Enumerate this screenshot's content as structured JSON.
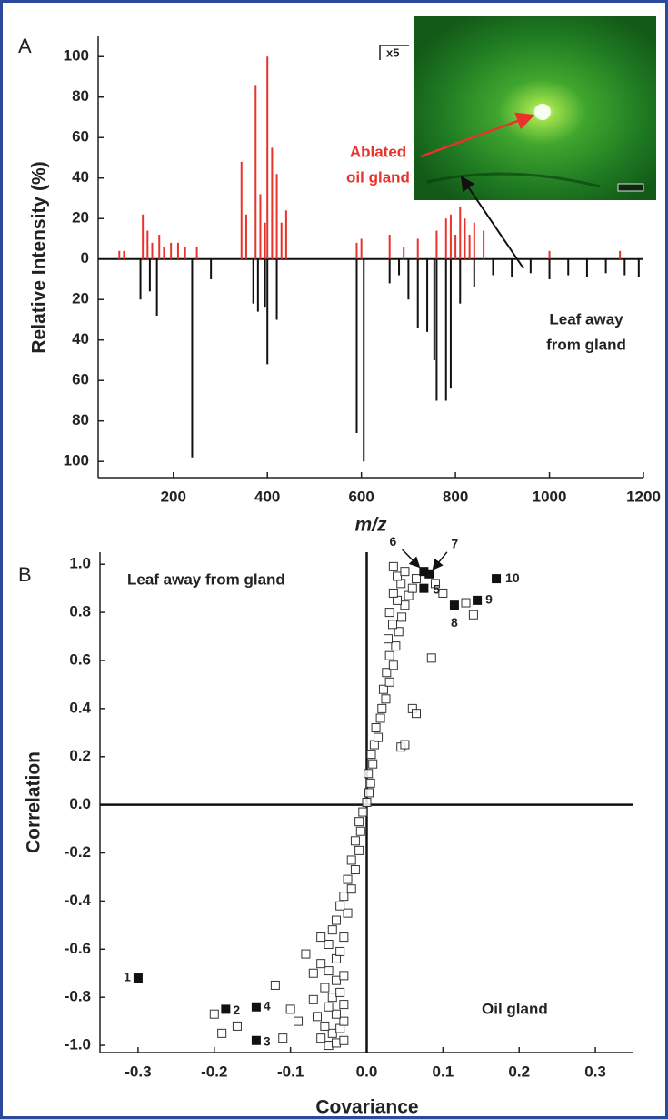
{
  "chart_data": [
    {
      "type": "bar",
      "panel": "A",
      "xlabel": "m/z",
      "ylabel": "Relative Intensity (%)",
      "xlim": [
        40,
        1200
      ],
      "xticks": [
        200,
        400,
        600,
        800,
        1000,
        1200
      ],
      "ylim": [
        -108,
        110
      ],
      "yticks": [
        100,
        80,
        60,
        40,
        20,
        0,
        {
          "value": -20,
          "label": "20"
        },
        {
          "value": -40,
          "label": "40"
        },
        {
          "value": -60,
          "label": "60"
        },
        {
          "value": -80,
          "label": "80"
        },
        {
          "value": -100,
          "label": "100"
        }
      ],
      "series": [
        {
          "color": "#e8322a",
          "x": [
            85,
            95,
            135,
            145,
            155,
            170,
            180,
            195,
            210,
            225,
            250,
            345,
            355,
            375,
            385,
            395,
            400,
            410,
            420,
            430,
            440,
            590,
            600,
            660,
            690,
            720,
            760,
            780,
            790,
            800,
            810,
            820,
            830,
            840,
            860,
            1000,
            1150
          ],
          "values": [
            4,
            4,
            22,
            14,
            8,
            12,
            6,
            8,
            8,
            6,
            6,
            48,
            22,
            86,
            32,
            18,
            100,
            55,
            42,
            18,
            24,
            8,
            10,
            12,
            6,
            10,
            14,
            20,
            22,
            12,
            26,
            20,
            12,
            18,
            14,
            4,
            4
          ]
        },
        {
          "color": "#111111",
          "x": [
            130,
            150,
            165,
            240,
            280,
            370,
            380,
            395,
            400,
            420,
            590,
            605,
            660,
            680,
            700,
            720,
            740,
            755,
            760,
            780,
            790,
            810,
            840,
            880,
            920,
            960,
            1000,
            1040,
            1080,
            1120,
            1160,
            1190
          ],
          "values": [
            -20,
            -16,
            -28,
            -98,
            -10,
            -22,
            -26,
            -24,
            -52,
            -30,
            -86,
            -100,
            -12,
            -8,
            -20,
            -34,
            -36,
            -50,
            -70,
            -70,
            -64,
            -22,
            -14,
            -8,
            -9,
            -7,
            -10,
            -8,
            -9,
            -7,
            -8,
            -9
          ]
        }
      ],
      "annotations": {
        "magnification": "x5",
        "ablated": [
          "Ablated",
          "oil gland"
        ],
        "leaf": [
          "Leaf away",
          "from gland"
        ]
      }
    },
    {
      "type": "scatter",
      "panel": "B",
      "xlabel": "Covariance",
      "ylabel": "Correlation",
      "xlim": [
        -0.35,
        0.35
      ],
      "xticks": [
        -0.3,
        -0.2,
        -0.1,
        {
          "value": 0,
          "label": "0.0"
        },
        0.1,
        0.2,
        0.3
      ],
      "ylim": [
        -1.03,
        1.05
      ],
      "yticks": [
        {
          "value": -1,
          "label": "-1.0"
        },
        -0.8,
        -0.6,
        -0.4,
        -0.2,
        {
          "value": 0,
          "label": "0.0"
        },
        0.2,
        0.4,
        0.6,
        0.8,
        {
          "value": 1,
          "label": "1.0"
        }
      ],
      "series": [
        {
          "marker": "open",
          "color": "#333333",
          "x": [
            -0.05,
            -0.04,
            -0.03,
            -0.06,
            -0.045,
            -0.035,
            -0.055,
            -0.03,
            -0.065,
            -0.04,
            -0.05,
            -0.03,
            -0.07,
            -0.045,
            -0.035,
            -0.055,
            -0.04,
            -0.03,
            -0.05,
            -0.06,
            -0.04,
            -0.035,
            -0.05,
            -0.03,
            -0.045,
            -0.04,
            -0.025,
            -0.035,
            -0.03,
            -0.02,
            -0.025,
            -0.015,
            -0.02,
            -0.01,
            -0.015,
            -0.008,
            -0.01,
            -0.005,
            0,
            0.003,
            0.005,
            0.002,
            0.008,
            0.006,
            0.01,
            0.015,
            0.012,
            0.018,
            0.02,
            0.025,
            0.022,
            0.03,
            0.026,
            0.035,
            0.03,
            0.038,
            0.028,
            0.042,
            0.034,
            0.046,
            0.03,
            0.05,
            0.04,
            0.055,
            0.035,
            0.06,
            0.045,
            0.065,
            0.04,
            0.05,
            0.035,
            -0.2,
            -0.19,
            -0.17,
            -0.11,
            -0.12,
            -0.1,
            -0.09,
            -0.08,
            -0.07,
            -0.06,
            0.14,
            0.13,
            0.09,
            0.1,
            0.085,
            0.06,
            0.065,
            0.045,
            0.05
          ],
          "values": [
            -1.0,
            -0.99,
            -0.98,
            -0.97,
            -0.95,
            -0.93,
            -0.92,
            -0.9,
            -0.88,
            -0.87,
            -0.84,
            -0.83,
            -0.81,
            -0.8,
            -0.78,
            -0.76,
            -0.73,
            -0.71,
            -0.69,
            -0.66,
            -0.64,
            -0.61,
            -0.58,
            -0.55,
            -0.52,
            -0.48,
            -0.45,
            -0.42,
            -0.38,
            -0.35,
            -0.31,
            -0.27,
            -0.23,
            -0.19,
            -0.15,
            -0.11,
            -0.07,
            -0.03,
            0.01,
            0.05,
            0.09,
            0.13,
            0.17,
            0.21,
            0.25,
            0.28,
            0.32,
            0.36,
            0.4,
            0.44,
            0.48,
            0.51,
            0.55,
            0.58,
            0.62,
            0.66,
            0.69,
            0.72,
            0.75,
            0.78,
            0.8,
            0.83,
            0.85,
            0.87,
            0.88,
            0.9,
            0.92,
            0.94,
            0.95,
            0.97,
            0.99,
            -0.87,
            -0.95,
            -0.92,
            -0.97,
            -0.75,
            -0.85,
            -0.9,
            -0.62,
            -0.7,
            -0.55,
            0.79,
            0.84,
            0.92,
            0.88,
            0.61,
            0.4,
            0.38,
            0.24,
            0.25
          ]
        },
        {
          "marker": "filled",
          "color": "#111111",
          "x": [
            -0.3,
            -0.185,
            -0.145,
            -0.145,
            0.075,
            0.075,
            0.082,
            0.115,
            0.145,
            0.17
          ],
          "values": [
            -0.72,
            -0.85,
            -0.98,
            -0.84,
            0.9,
            0.97,
            0.96,
            0.83,
            0.85,
            0.94
          ],
          "labels": [
            "1",
            "2",
            "3",
            "4",
            "5",
            "6",
            "7",
            "8",
            "9",
            "10"
          ]
        }
      ],
      "annotations": {
        "upper_left": "Leaf away from gland",
        "lower_right": "Oil gland"
      }
    }
  ]
}
